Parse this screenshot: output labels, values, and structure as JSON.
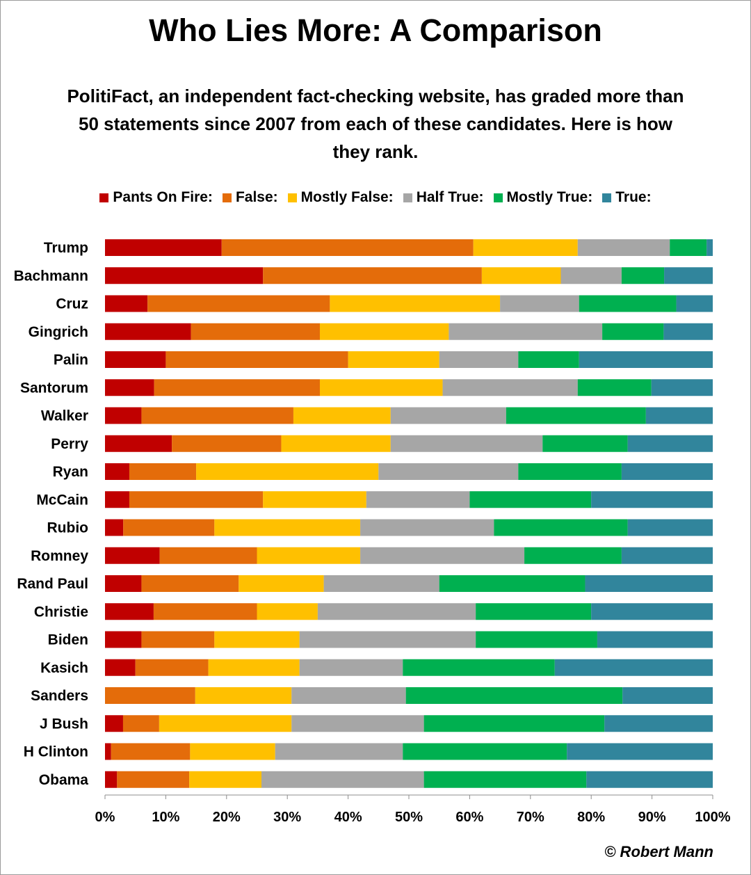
{
  "header": {
    "title": "Who Lies More: A Comparison",
    "subtitle": "PolitiFact,  an independent fact-checking website, has graded more than 50 statements since 2007 from each of these candidates. Here is how they rank."
  },
  "credit": "© Robert Mann",
  "chart_data": {
    "type": "bar",
    "orientation": "horizontal",
    "stacked": true,
    "percent": true,
    "title": "Who Lies More: A Comparison",
    "xlabel": "",
    "ylabel": "",
    "xlim": [
      0,
      100
    ],
    "xticks": [
      "0%",
      "10%",
      "20%",
      "30%",
      "40%",
      "50%",
      "60%",
      "70%",
      "80%",
      "90%",
      "100%"
    ],
    "legend_position": "top",
    "categories": [
      "Trump",
      "Bachmann",
      "Cruz",
      "Gingrich",
      "Palin",
      "Santorum",
      "Walker",
      "Perry",
      "Ryan",
      "McCain",
      "Rubio",
      "Romney",
      "Rand Paul",
      "Christie",
      "Biden",
      "Kasich",
      "Sanders",
      "J Bush",
      "H Clinton",
      "Obama"
    ],
    "series": [
      {
        "name": "Pants On Fire:",
        "color": "#c00000",
        "values": [
          19,
          26,
          7,
          14,
          10,
          8,
          6,
          11,
          4,
          4,
          3,
          9,
          6,
          8,
          6,
          5,
          0,
          3,
          1,
          2
        ]
      },
      {
        "name": "False:",
        "color": "#e46c0a",
        "values": [
          41,
          36,
          30,
          21,
          30,
          27,
          25,
          18,
          11,
          22,
          15,
          16,
          16,
          17,
          12,
          12,
          15,
          6,
          13,
          12
        ]
      },
      {
        "name": "Mostly False:",
        "color": "#ffc000",
        "values": [
          17,
          13,
          28,
          21,
          15,
          20,
          16,
          18,
          30,
          17,
          24,
          17,
          14,
          10,
          14,
          15,
          16,
          22,
          14,
          12
        ]
      },
      {
        "name": "Half True:",
        "color": "#a6a6a6",
        "values": [
          15,
          10,
          13,
          25,
          13,
          22,
          19,
          25,
          23,
          17,
          22,
          27,
          19,
          26,
          29,
          17,
          19,
          22,
          21,
          27
        ]
      },
      {
        "name": "Mostly True:",
        "color": "#00b050",
        "values": [
          6,
          7,
          16,
          10,
          10,
          12,
          23,
          14,
          17,
          20,
          22,
          16,
          24,
          19,
          20,
          25,
          36,
          30,
          27,
          27
        ]
      },
      {
        "name": "True:",
        "color": "#31859c",
        "values": [
          1,
          8,
          6,
          8,
          22,
          10,
          11,
          14,
          15,
          20,
          14,
          15,
          21,
          20,
          19,
          26,
          15,
          18,
          24,
          21
        ]
      }
    ]
  }
}
